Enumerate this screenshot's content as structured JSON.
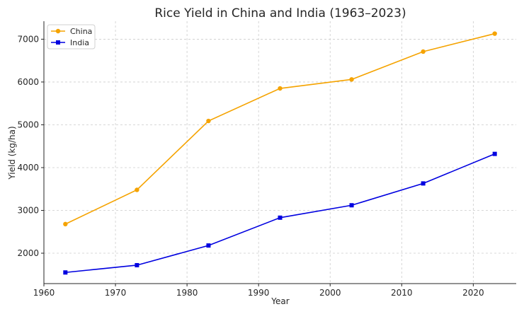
{
  "chart_data": {
    "type": "line",
    "title": "Rice Yield in China and India (1963–2023)",
    "xlabel": "Year",
    "ylabel": "Yield (kg/ha)",
    "xlim": [
      1960,
      2026
    ],
    "ylim": [
      1290,
      7420
    ],
    "x_ticks": [
      1960,
      1970,
      1980,
      1990,
      2000,
      2010,
      2020
    ],
    "y_ticks": [
      2000,
      3000,
      4000,
      5000,
      6000,
      7000
    ],
    "grid": true,
    "legend_position": "top-left",
    "x": [
      1963,
      1973,
      1983,
      1993,
      2003,
      2013,
      2023
    ],
    "series": [
      {
        "name": "China",
        "color": "#f5a300",
        "marker": "circle",
        "values": [
          2680,
          3480,
          5090,
          5850,
          6060,
          6710,
          7130
        ]
      },
      {
        "name": "India",
        "color": "#0000e0",
        "marker": "square",
        "values": [
          1550,
          1720,
          2180,
          2830,
          3120,
          3630,
          4320
        ]
      }
    ]
  }
}
